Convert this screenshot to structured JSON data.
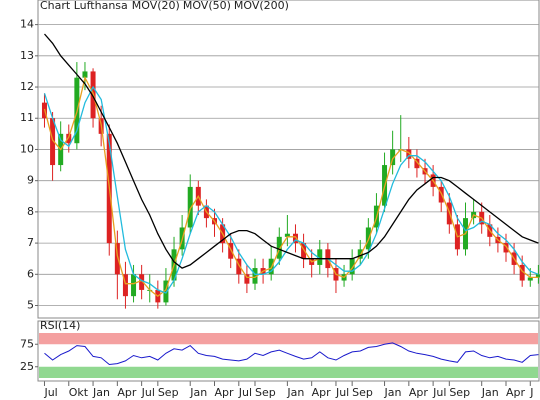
{
  "chart_data": [
    {
      "type": "candlestick",
      "title": "Chart Lufthansa",
      "title_color": "#e8a020",
      "up_color": "#22aa22",
      "down_color": "#dd2222",
      "xlim": [
        -0.8,
        61.2
      ],
      "xticks": [
        {
          "value": 0,
          "label": "Jul"
        },
        {
          "value": 3,
          "label": "Okt"
        },
        {
          "value": 6,
          "label": "Jan"
        },
        {
          "value": 9,
          "label": "Apr"
        },
        {
          "value": 12,
          "label": "Jul"
        },
        {
          "value": 14,
          "label": "Sep"
        },
        {
          "value": 18,
          "label": "Jan"
        },
        {
          "value": 21,
          "label": "Apr"
        },
        {
          "value": 24,
          "label": "Jul"
        },
        {
          "value": 26,
          "label": "Sep"
        },
        {
          "value": 30,
          "label": "Jan"
        },
        {
          "value": 33,
          "label": "Apr"
        },
        {
          "value": 36,
          "label": "Jul"
        },
        {
          "value": 38,
          "label": "Sep"
        },
        {
          "value": 42,
          "label": "Jan"
        },
        {
          "value": 45,
          "label": "Apr"
        },
        {
          "value": 48,
          "label": "Jul"
        },
        {
          "value": 50,
          "label": "Sep"
        },
        {
          "value": 54,
          "label": "Jan"
        },
        {
          "value": 57,
          "label": "Apr"
        },
        {
          "value": 60,
          "label": "J"
        }
      ],
      "ylim": [
        4.6,
        14.5
      ],
      "yticks": [
        5,
        6,
        7,
        8,
        9,
        10,
        11,
        12,
        13,
        14
      ],
      "grid": true,
      "open": [
        11.5,
        11.0,
        9.5,
        10.5,
        10.2,
        12.3,
        12.5,
        11.0,
        10.5,
        7.0,
        6.0,
        5.3,
        6.0,
        5.5,
        5.5,
        5.1,
        5.8,
        6.8,
        7.5,
        8.8,
        8.2,
        7.8,
        7.6,
        7.0,
        6.5,
        6.0,
        5.7,
        6.2,
        6.0,
        6.5,
        7.2,
        7.3,
        7.0,
        6.5,
        6.3,
        6.8,
        6.2,
        5.8,
        6.0,
        6.5,
        6.8,
        7.5,
        8.2,
        9.5,
        10.0,
        10.0,
        9.7,
        9.4,
        9.2,
        8.8,
        8.3,
        7.6,
        6.8,
        7.8,
        8.0,
        7.6,
        7.2,
        7.0,
        6.7,
        6.3,
        5.8,
        5.9
      ],
      "high": [
        11.8,
        11.2,
        10.9,
        10.8,
        12.8,
        12.8,
        12.6,
        11.4,
        10.8,
        7.4,
        6.4,
        6.3,
        6.3,
        6.0,
        5.8,
        6.2,
        7.2,
        7.9,
        9.2,
        9.0,
        8.4,
        8.1,
        7.8,
        7.3,
        6.8,
        6.3,
        6.5,
        6.5,
        6.9,
        7.5,
        7.9,
        7.6,
        7.3,
        6.8,
        7.1,
        7.0,
        6.5,
        6.3,
        6.8,
        7.1,
        7.8,
        8.6,
        9.9,
        10.6,
        11.1,
        10.4,
        10.0,
        9.7,
        9.5,
        9.0,
        8.6,
        7.9,
        8.3,
        8.4,
        8.3,
        7.9,
        7.5,
        7.3,
        7.0,
        6.6,
        6.2,
        6.3
      ],
      "low": [
        10.7,
        9.0,
        9.3,
        9.9,
        10.0,
        11.9,
        10.7,
        10.1,
        6.6,
        5.2,
        4.9,
        5.1,
        5.2,
        5.1,
        4.9,
        5.0,
        5.6,
        6.6,
        7.3,
        7.9,
        7.5,
        7.2,
        6.7,
        6.2,
        5.7,
        5.4,
        5.5,
        5.7,
        5.8,
        6.3,
        6.9,
        6.7,
        6.2,
        5.9,
        6.0,
        5.9,
        5.4,
        5.6,
        5.8,
        6.3,
        6.5,
        7.3,
        8.0,
        9.2,
        9.6,
        9.4,
        9.1,
        8.9,
        8.5,
        8.0,
        7.3,
        6.6,
        6.6,
        7.6,
        7.3,
        6.9,
        6.7,
        6.4,
        6.0,
        5.6,
        5.6,
        5.7
      ],
      "close": [
        11.0,
        9.5,
        10.5,
        10.2,
        12.3,
        12.5,
        11.0,
        10.5,
        7.0,
        6.0,
        5.3,
        6.0,
        5.5,
        5.5,
        5.1,
        5.8,
        6.8,
        7.5,
        8.8,
        8.2,
        7.8,
        7.6,
        7.0,
        6.5,
        6.0,
        5.7,
        6.2,
        6.0,
        6.5,
        7.2,
        7.3,
        7.0,
        6.5,
        6.3,
        6.8,
        6.2,
        5.8,
        6.0,
        6.5,
        6.8,
        7.5,
        8.2,
        9.5,
        10.0,
        10.0,
        9.7,
        9.4,
        9.2,
        8.8,
        8.3,
        7.6,
        6.8,
        7.8,
        8.0,
        7.6,
        7.2,
        7.0,
        6.7,
        6.3,
        5.8,
        5.9,
        6.0
      ],
      "series": [
        {
          "name": "MOV(20)",
          "color": "#e8a020",
          "values": [
            11.3,
            10.3,
            10.0,
            10.4,
            11.2,
            12.3,
            11.8,
            10.8,
            8.8,
            6.6,
            5.7,
            5.7,
            5.8,
            5.5,
            5.3,
            5.5,
            6.3,
            7.1,
            8.1,
            8.5,
            8.0,
            7.7,
            7.3,
            6.8,
            6.3,
            5.9,
            5.9,
            6.1,
            6.2,
            6.8,
            7.2,
            7.2,
            6.8,
            6.4,
            6.5,
            6.5,
            6.0,
            5.9,
            6.2,
            6.6,
            7.1,
            7.8,
            8.8,
            9.7,
            10.0,
            9.9,
            9.6,
            9.3,
            9.0,
            8.6,
            8.0,
            7.2,
            7.3,
            7.9,
            7.8,
            7.4,
            7.1,
            6.9,
            6.5,
            6.1,
            5.9,
            5.9
          ]
        },
        {
          "name": "MOV(50)",
          "color": "#22bbdd",
          "values": [
            11.8,
            11.0,
            10.3,
            10.1,
            10.6,
            11.5,
            12.0,
            11.6,
            10.2,
            8.5,
            6.8,
            6.0,
            5.8,
            5.7,
            5.5,
            5.4,
            5.8,
            6.5,
            7.3,
            8.0,
            8.2,
            8.0,
            7.6,
            7.2,
            6.7,
            6.3,
            6.0,
            6.0,
            6.1,
            6.4,
            6.8,
            7.1,
            7.0,
            6.7,
            6.5,
            6.5,
            6.3,
            6.1,
            6.1,
            6.3,
            6.7,
            7.3,
            8.1,
            8.9,
            9.5,
            9.8,
            9.8,
            9.6,
            9.3,
            9.0,
            8.5,
            7.8,
            7.4,
            7.5,
            7.7,
            7.6,
            7.3,
            7.1,
            6.8,
            6.4,
            6.1,
            6.0
          ]
        },
        {
          "name": "MOV(200)",
          "color": "#000000",
          "values": [
            13.7,
            13.4,
            13.0,
            12.7,
            12.4,
            12.1,
            11.7,
            11.2,
            10.7,
            10.2,
            9.6,
            9.0,
            8.4,
            7.9,
            7.3,
            6.8,
            6.4,
            6.2,
            6.3,
            6.5,
            6.7,
            6.9,
            7.1,
            7.3,
            7.4,
            7.4,
            7.3,
            7.1,
            6.9,
            6.8,
            6.7,
            6.6,
            6.5,
            6.5,
            6.5,
            6.5,
            6.5,
            6.5,
            6.5,
            6.6,
            6.7,
            6.9,
            7.2,
            7.6,
            8.0,
            8.4,
            8.7,
            8.9,
            9.1,
            9.1,
            9.0,
            8.8,
            8.6,
            8.4,
            8.2,
            8.0,
            7.8,
            7.6,
            7.4,
            7.2,
            7.1,
            7.0
          ]
        }
      ]
    },
    {
      "type": "line",
      "title": "RSI(14)",
      "xlim": [
        -0.8,
        61.2
      ],
      "ylim": [
        0,
        100
      ],
      "yticks": [
        25,
        75
      ],
      "bands": [
        {
          "from": 75,
          "to": 100,
          "color": "#f4a0a0"
        },
        {
          "from": 0,
          "to": 25,
          "color": "#90d890"
        }
      ],
      "series": [
        {
          "color": "#1a1acc",
          "values": [
            55,
            40,
            52,
            60,
            72,
            70,
            48,
            45,
            30,
            32,
            38,
            50,
            45,
            48,
            40,
            55,
            65,
            62,
            72,
            55,
            50,
            48,
            42,
            40,
            38,
            42,
            55,
            50,
            58,
            62,
            55,
            48,
            42,
            45,
            58,
            45,
            40,
            50,
            58,
            60,
            68,
            70,
            75,
            78,
            70,
            60,
            55,
            52,
            48,
            42,
            38,
            35,
            58,
            60,
            50,
            45,
            48,
            42,
            40,
            35,
            50,
            52
          ]
        }
      ]
    }
  ]
}
